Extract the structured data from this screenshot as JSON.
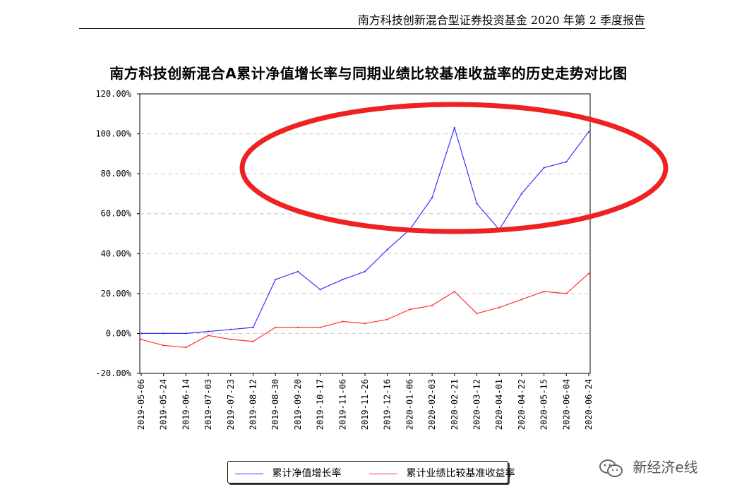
{
  "document": {
    "header": "南方科技创新混合型证券投资基金 2020 年第 2 季度报告"
  },
  "watermark": {
    "text": "新经济e线",
    "icon": "wechat-icon"
  },
  "colors": {
    "nav_series": "#3333ff",
    "benchmark_series": "#ff3333",
    "annotation": "#ee2222",
    "grid": "#cccccc"
  },
  "chart_data": {
    "type": "line",
    "title": "南方科技创新混合A累计净值增长率与同期业绩比较基准收益率的历史走势对比图",
    "xlabel": "",
    "ylabel": "",
    "ylim": [
      -20,
      120
    ],
    "yticks": [
      "-20.00%",
      "0.00%",
      "20.00%",
      "40.00%",
      "60.00%",
      "80.00%",
      "100.00%",
      "120.00%"
    ],
    "xticks": [
      "2019-05-06",
      "2019-05-24",
      "2019-06-14",
      "2019-07-03",
      "2019-07-23",
      "2019-08-12",
      "2019-08-30",
      "2019-09-20",
      "2019-10-17",
      "2019-11-06",
      "2019-11-26",
      "2019-12-16",
      "2020-01-06",
      "2020-02-03",
      "2020-02-21",
      "2020-03-12",
      "2020-04-01",
      "2020-04-22",
      "2020-05-15",
      "2020-06-04",
      "2020-06-24"
    ],
    "x": [
      "2019-05-06",
      "2019-05-24",
      "2019-06-14",
      "2019-07-03",
      "2019-07-23",
      "2019-08-12",
      "2019-08-30",
      "2019-09-20",
      "2019-10-17",
      "2019-11-06",
      "2019-11-26",
      "2019-12-16",
      "2020-01-06",
      "2020-02-03",
      "2020-02-21",
      "2020-03-12",
      "2020-04-01",
      "2020-04-22",
      "2020-05-15",
      "2020-06-04",
      "2020-06-24"
    ],
    "grid": "horizontal dashed",
    "legend_position": "bottom-center",
    "series": [
      {
        "name": "累计净值增长率",
        "color": "#3333ff",
        "values": [
          0,
          0,
          0,
          1,
          2,
          3,
          27,
          31,
          22,
          27,
          31,
          42,
          52,
          68,
          103,
          65,
          52,
          70,
          83,
          86,
          101
        ]
      },
      {
        "name": "累计业绩比较基准收益率",
        "color": "#ff3333",
        "values": [
          -3,
          -6,
          -7,
          -1,
          -3,
          -4,
          3,
          3,
          3,
          6,
          5,
          7,
          12,
          14,
          21,
          10,
          13,
          17,
          21,
          20,
          30
        ]
      }
    ]
  }
}
